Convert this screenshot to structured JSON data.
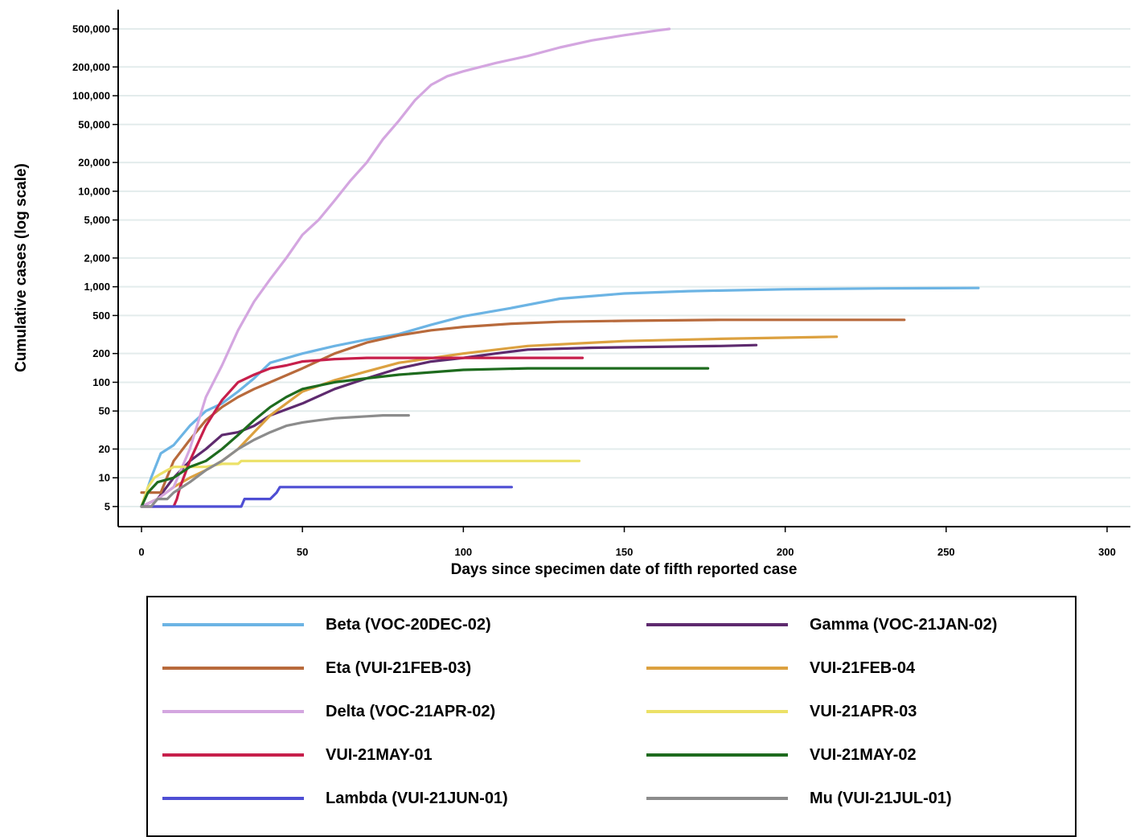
{
  "chart_data": {
    "type": "line",
    "xlabel": "Days since specimen date of fifth reported case",
    "ylabel": "Cumulative cases (log scale)",
    "xlim": [
      0,
      300
    ],
    "ylim": [
      5,
      500000
    ],
    "y_scale": "log",
    "grid": "horizontal",
    "legend_position": "bottom",
    "x_ticks": [
      0,
      50,
      100,
      150,
      200,
      250,
      300
    ],
    "x_tick_labels": [
      "0",
      "50",
      "100",
      "150",
      "200",
      "250",
      "300"
    ],
    "y_ticks": [
      5,
      10,
      20,
      50,
      100,
      200,
      500,
      1000,
      2000,
      5000,
      10000,
      20000,
      50000,
      100000,
      200000,
      500000
    ],
    "y_tick_labels": [
      "5",
      "10",
      "20",
      "50",
      "100",
      "200",
      "500",
      "1,000",
      "2,000",
      "5,000",
      "10,000",
      "20,000",
      "50,000",
      "100,000",
      "200,000",
      "500,000"
    ],
    "series": [
      {
        "name": "Beta (VOC-20DEC-02)",
        "color": "#6cb4e4",
        "x": [
          0,
          3,
          6,
          10,
          15,
          20,
          25,
          30,
          35,
          40,
          50,
          60,
          70,
          80,
          90,
          100,
          115,
          130,
          150,
          170,
          200,
          230,
          260
        ],
        "y": [
          5,
          10,
          18,
          22,
          35,
          50,
          60,
          80,
          110,
          160,
          200,
          240,
          280,
          320,
          400,
          490,
          600,
          750,
          850,
          900,
          940,
          960,
          970
        ]
      },
      {
        "name": "Gamma (VOC-21JAN-02)",
        "color": "#5e2a6e",
        "x": [
          0,
          5,
          10,
          15,
          20,
          25,
          30,
          35,
          40,
          50,
          60,
          70,
          80,
          90,
          100,
          110,
          120,
          140,
          160,
          180,
          191
        ],
        "y": [
          5,
          6,
          10,
          15,
          20,
          28,
          30,
          35,
          45,
          60,
          85,
          110,
          140,
          165,
          180,
          200,
          220,
          230,
          235,
          240,
          245
        ]
      },
      {
        "name": "Eta (VUI-21FEB-03)",
        "color": "#b86a3c",
        "x": [
          0,
          3,
          6,
          10,
          15,
          20,
          25,
          30,
          35,
          40,
          50,
          60,
          70,
          80,
          90,
          100,
          115,
          130,
          150,
          180,
          210,
          237
        ],
        "y": [
          7,
          7,
          7,
          15,
          25,
          40,
          55,
          70,
          85,
          100,
          140,
          200,
          260,
          310,
          350,
          380,
          410,
          430,
          440,
          450,
          450,
          450
        ]
      },
      {
        "name": "VUI-21FEB-04",
        "color": "#dca140",
        "x": [
          0,
          5,
          10,
          15,
          20,
          25,
          30,
          35,
          40,
          50,
          60,
          70,
          80,
          100,
          120,
          150,
          180,
          216
        ],
        "y": [
          5,
          6,
          8,
          10,
          12,
          15,
          20,
          30,
          45,
          80,
          105,
          130,
          160,
          200,
          240,
          270,
          285,
          300
        ]
      },
      {
        "name": "Delta (VOC-21APR-02)",
        "color": "#d4a6e0",
        "x": [
          0,
          5,
          10,
          15,
          20,
          25,
          30,
          35,
          40,
          45,
          50,
          55,
          60,
          65,
          70,
          75,
          80,
          85,
          90,
          95,
          100,
          110,
          120,
          130,
          140,
          150,
          160,
          164
        ],
        "y": [
          5,
          6,
          8,
          20,
          70,
          150,
          350,
          700,
          1200,
          2000,
          3500,
          5000,
          8000,
          13000,
          20000,
          35000,
          55000,
          90000,
          130000,
          160000,
          180000,
          220000,
          260000,
          320000,
          380000,
          430000,
          480000,
          500000
        ]
      },
      {
        "name": "VUI-21APR-03",
        "color": "#ece167",
        "x": [
          0,
          2,
          4,
          6,
          8,
          10,
          15,
          20,
          25,
          30,
          31,
          40,
          60,
          80,
          100,
          120,
          136
        ],
        "y": [
          5,
          8,
          10,
          11,
          12,
          13,
          13,
          13,
          14,
          14,
          15,
          15,
          15,
          15,
          15,
          15,
          15
        ]
      },
      {
        "name": "VUI-21MAY-01",
        "color": "#c71f4b",
        "x": [
          0,
          5,
          10,
          11,
          12,
          15,
          18,
          20,
          25,
          30,
          35,
          40,
          45,
          50,
          60,
          70,
          80,
          100,
          120,
          137
        ],
        "y": [
          5,
          5,
          5,
          6,
          8,
          15,
          25,
          35,
          65,
          100,
          120,
          140,
          150,
          165,
          175,
          180,
          180,
          180,
          180,
          180
        ]
      },
      {
        "name": "VUI-21MAY-02",
        "color": "#1e6b1e",
        "x": [
          0,
          2,
          5,
          10,
          15,
          20,
          25,
          30,
          35,
          40,
          45,
          50,
          60,
          70,
          80,
          100,
          120,
          150,
          176
        ],
        "y": [
          5,
          7,
          9,
          10,
          13,
          15,
          20,
          28,
          40,
          55,
          70,
          85,
          100,
          110,
          120,
          135,
          140,
          140,
          140
        ]
      },
      {
        "name": "Lambda (VUI-21JUN-01)",
        "color": "#4e4ed4",
        "x": [
          0,
          31,
          32,
          40,
          42,
          43,
          60,
          80,
          100,
          115
        ],
        "y": [
          5,
          5,
          6,
          6,
          7,
          8,
          8,
          8,
          8,
          8
        ]
      },
      {
        "name": "Mu (VUI-21JUL-01)",
        "color": "#8c8c8c",
        "x": [
          0,
          3,
          5,
          8,
          10,
          15,
          20,
          25,
          30,
          35,
          40,
          45,
          50,
          55,
          60,
          65,
          70,
          75,
          80,
          83
        ],
        "y": [
          5,
          5,
          6,
          6,
          7,
          9,
          12,
          15,
          20,
          25,
          30,
          35,
          38,
          40,
          42,
          43,
          44,
          45,
          45,
          45
        ]
      }
    ]
  }
}
